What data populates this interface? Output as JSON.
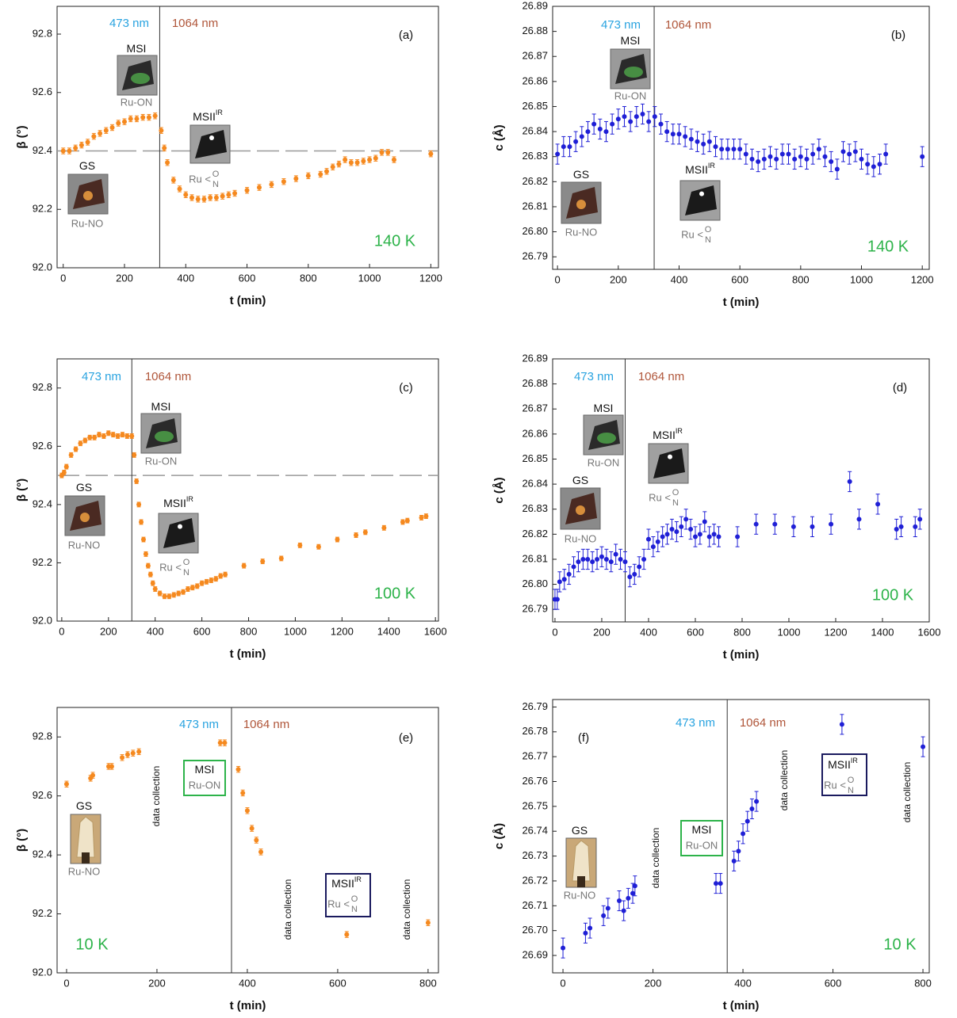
{
  "chart_data": [
    {
      "type": "scatter",
      "label": "(a)",
      "x_label": "t (min)",
      "y_label": "β (°)",
      "color": "#f5891f",
      "pump": "473 nm",
      "probe": "1064 nm",
      "temperature": "140 K",
      "xlim": [
        -20,
        1225
      ],
      "ylim": [
        92.0,
        92.895
      ],
      "xticks": [
        0,
        200,
        400,
        600,
        800,
        1000,
        1200
      ],
      "yticks": [
        {
          "value": 92.0,
          "label": "92.0"
        },
        92.2,
        92.4,
        92.6,
        92.8
      ],
      "switch_time": 315,
      "reference_line": 92.4,
      "states": [
        {
          "name": "MSI",
          "sub": "Ru-ON"
        },
        {
          "name": "GS",
          "sub": "Ru-NO"
        },
        {
          "name": "MSII",
          "sup": "IR",
          "base": "Ru <",
          "top": "O",
          "bottom": "N"
        }
      ],
      "x": [
        0,
        20,
        40,
        60,
        80,
        100,
        120,
        140,
        160,
        180,
        200,
        220,
        240,
        260,
        280,
        300,
        320,
        330,
        340,
        360,
        380,
        400,
        420,
        440,
        460,
        480,
        500,
        520,
        540,
        560,
        600,
        640,
        680,
        720,
        760,
        800,
        840,
        860,
        880,
        900,
        920,
        940,
        960,
        980,
        1000,
        1020,
        1040,
        1060,
        1080,
        1200
      ],
      "values": [
        92.4,
        92.4,
        92.41,
        92.42,
        92.43,
        92.45,
        92.46,
        92.47,
        92.48,
        92.495,
        92.5,
        92.51,
        92.51,
        92.515,
        92.515,
        92.52,
        92.47,
        92.41,
        92.36,
        92.3,
        92.27,
        92.25,
        92.24,
        92.235,
        92.235,
        92.24,
        92.24,
        92.245,
        92.25,
        92.255,
        92.265,
        92.275,
        92.285,
        92.295,
        92.305,
        92.315,
        92.32,
        92.33,
        92.345,
        92.355,
        92.37,
        92.36,
        92.36,
        92.365,
        92.37,
        92.375,
        92.395,
        92.395,
        92.37,
        92.39
      ],
      "errors": [
        0.01,
        0.01,
        0.01,
        0.01,
        0.01,
        0.01,
        0.01,
        0.01,
        0.01,
        0.01,
        0.01,
        0.01,
        0.01,
        0.01,
        0.01,
        0.01,
        0.01,
        0.01,
        0.01,
        0.01,
        0.01,
        0.01,
        0.01,
        0.01,
        0.01,
        0.01,
        0.01,
        0.01,
        0.01,
        0.01,
        0.01,
        0.01,
        0.01,
        0.01,
        0.01,
        0.01,
        0.01,
        0.01,
        0.01,
        0.01,
        0.01,
        0.01,
        0.01,
        0.01,
        0.01,
        0.01,
        0.01,
        0.01,
        0.01,
        0.01
      ]
    },
    {
      "type": "scatter",
      "label": "(b)",
      "x_label": "t (min)",
      "y_label": "c (Å)",
      "color": "#1f1fd6",
      "pump": "473 nm",
      "probe": "1064 nm",
      "temperature": "140 K",
      "xlim": [
        -16,
        1223
      ],
      "ylim": [
        26.785,
        26.89
      ],
      "xticks": [
        0,
        200,
        400,
        600,
        800,
        1000,
        1200
      ],
      "yticks": [
        26.79,
        {
          "value": 26.8,
          "label": "26.80"
        },
        26.81,
        26.82,
        26.83,
        26.84,
        26.85,
        26.86,
        26.87,
        26.88,
        26.89
      ],
      "switch_time": 318,
      "states": [
        {
          "name": "MSI",
          "sub": "Ru-ON"
        },
        {
          "name": "GS",
          "sub": "Ru-NO"
        },
        {
          "name": "MSII",
          "sup": "IR",
          "base": "Ru <",
          "top": "O",
          "bottom": "N"
        }
      ],
      "x": [
        0,
        20,
        40,
        60,
        80,
        100,
        120,
        140,
        160,
        180,
        200,
        220,
        240,
        260,
        280,
        300,
        320,
        340,
        360,
        380,
        400,
        420,
        440,
        460,
        480,
        500,
        520,
        540,
        560,
        580,
        600,
        620,
        640,
        660,
        680,
        700,
        720,
        740,
        760,
        780,
        800,
        820,
        840,
        860,
        880,
        900,
        920,
        940,
        960,
        980,
        1000,
        1020,
        1040,
        1060,
        1080,
        1200
      ],
      "values": [
        26.831,
        26.834,
        26.834,
        26.836,
        26.838,
        26.84,
        26.843,
        26.841,
        26.84,
        26.843,
        26.845,
        26.846,
        26.844,
        26.846,
        26.847,
        26.844,
        26.846,
        26.843,
        26.84,
        26.839,
        26.839,
        26.838,
        26.837,
        26.836,
        26.835,
        26.836,
        26.834,
        26.833,
        26.833,
        26.833,
        26.833,
        26.831,
        26.829,
        26.828,
        26.829,
        26.83,
        26.829,
        26.831,
        26.831,
        26.829,
        26.83,
        26.829,
        26.831,
        26.833,
        26.83,
        26.828,
        26.825,
        26.832,
        26.831,
        26.832,
        26.829,
        26.827,
        26.826,
        26.827,
        26.831,
        26.83
      ],
      "errors": [
        0.004,
        0.004,
        0.004,
        0.004,
        0.004,
        0.004,
        0.004,
        0.004,
        0.004,
        0.004,
        0.004,
        0.004,
        0.004,
        0.004,
        0.004,
        0.004,
        0.004,
        0.004,
        0.004,
        0.004,
        0.004,
        0.004,
        0.004,
        0.004,
        0.004,
        0.004,
        0.004,
        0.004,
        0.004,
        0.004,
        0.004,
        0.004,
        0.004,
        0.004,
        0.004,
        0.004,
        0.004,
        0.004,
        0.004,
        0.004,
        0.004,
        0.004,
        0.004,
        0.004,
        0.004,
        0.004,
        0.004,
        0.004,
        0.004,
        0.004,
        0.004,
        0.004,
        0.004,
        0.004,
        0.004,
        0.004
      ]
    },
    {
      "type": "scatter",
      "label": "(c)",
      "x_label": "t (min)",
      "y_label": "β (°)",
      "color": "#f5891f",
      "pump": "473 nm",
      "probe": "1064 nm",
      "temperature": "100 K",
      "xlim": [
        -20,
        1613
      ],
      "ylim": [
        92.0,
        92.9
      ],
      "xticks": [
        0,
        200,
        400,
        600,
        800,
        1000,
        1200,
        1400,
        1600
      ],
      "yticks": [
        {
          "value": 92.0,
          "label": "92.0"
        },
        92.2,
        92.4,
        92.6,
        92.8
      ],
      "switch_time": 300,
      "reference_line": 92.5,
      "states": [
        {
          "name": "MSI",
          "sub": "Ru-ON"
        },
        {
          "name": "GS",
          "sub": "Ru-NO"
        },
        {
          "name": "MSII",
          "sup": "IR",
          "base": "Ru <",
          "top": "O",
          "bottom": "N"
        }
      ],
      "x": [
        0,
        10,
        20,
        40,
        60,
        80,
        100,
        120,
        140,
        160,
        180,
        200,
        220,
        240,
        260,
        280,
        300,
        310,
        320,
        330,
        340,
        350,
        360,
        370,
        380,
        390,
        400,
        420,
        440,
        460,
        480,
        500,
        520,
        540,
        560,
        580,
        600,
        620,
        640,
        660,
        680,
        700,
        780,
        860,
        940,
        1020,
        1100,
        1180,
        1260,
        1300,
        1380,
        1460,
        1480,
        1540,
        1560
      ],
      "values": [
        92.5,
        92.51,
        92.53,
        92.57,
        92.59,
        92.61,
        92.62,
        92.63,
        92.63,
        92.64,
        92.635,
        92.645,
        92.64,
        92.635,
        92.64,
        92.635,
        92.635,
        92.57,
        92.48,
        92.4,
        92.34,
        92.28,
        92.23,
        92.19,
        92.16,
        92.13,
        92.11,
        92.095,
        92.085,
        92.085,
        92.09,
        92.095,
        92.1,
        92.11,
        92.115,
        92.12,
        92.13,
        92.135,
        92.14,
        92.145,
        92.155,
        92.16,
        92.19,
        92.205,
        92.215,
        92.26,
        92.255,
        92.28,
        92.295,
        92.305,
        92.32,
        92.34,
        92.345,
        92.355,
        92.36
      ],
      "errors": [
        0.008,
        0.008,
        0.008,
        0.008,
        0.008,
        0.008,
        0.008,
        0.008,
        0.008,
        0.008,
        0.008,
        0.008,
        0.008,
        0.008,
        0.008,
        0.008,
        0.008,
        0.008,
        0.008,
        0.008,
        0.008,
        0.008,
        0.008,
        0.008,
        0.008,
        0.008,
        0.008,
        0.008,
        0.008,
        0.008,
        0.008,
        0.008,
        0.008,
        0.008,
        0.008,
        0.008,
        0.008,
        0.008,
        0.008,
        0.008,
        0.008,
        0.008,
        0.008,
        0.008,
        0.008,
        0.008,
        0.008,
        0.008,
        0.008,
        0.008,
        0.008,
        0.008,
        0.008,
        0.008,
        0.008
      ]
    },
    {
      "type": "scatter",
      "label": "(d)",
      "x_label": "t (min)",
      "y_label": "c (Å)",
      "color": "#1f1fd6",
      "pump": "473 nm",
      "probe": "1064 nm",
      "temperature": "100 K",
      "xlim": [
        -10,
        1600
      ],
      "ylim": [
        26.785,
        26.89
      ],
      "xticks": [
        0,
        200,
        400,
        600,
        800,
        1000,
        1200,
        1400,
        1600
      ],
      "yticks": [
        26.79,
        {
          "value": 26.8,
          "label": "26.80"
        },
        26.81,
        26.82,
        26.83,
        26.84,
        26.85,
        26.86,
        26.87,
        26.88,
        26.89
      ],
      "switch_time": 300,
      "states": [
        {
          "name": "MSI",
          "sub": "Ru-ON"
        },
        {
          "name": "GS",
          "sub": "Ru-NO"
        },
        {
          "name": "MSII",
          "sup": "IR",
          "base": "Ru <",
          "top": "O",
          "bottom": "N"
        }
      ],
      "x": [
        0,
        10,
        20,
        40,
        60,
        80,
        100,
        120,
        140,
        160,
        180,
        200,
        220,
        240,
        260,
        280,
        300,
        320,
        340,
        360,
        380,
        400,
        420,
        440,
        460,
        480,
        500,
        520,
        540,
        560,
        580,
        600,
        620,
        640,
        660,
        680,
        700,
        780,
        860,
        940,
        1020,
        1100,
        1180,
        1260,
        1300,
        1380,
        1460,
        1480,
        1540,
        1560
      ],
      "values": [
        26.794,
        26.794,
        26.801,
        26.802,
        26.804,
        26.807,
        26.809,
        26.81,
        26.81,
        26.809,
        26.81,
        26.811,
        26.81,
        26.809,
        26.812,
        26.81,
        26.809,
        26.803,
        26.804,
        26.807,
        26.81,
        26.818,
        26.815,
        26.817,
        26.819,
        26.82,
        26.822,
        26.821,
        26.823,
        26.826,
        26.822,
        26.819,
        26.82,
        26.825,
        26.819,
        26.82,
        26.819,
        26.819,
        26.824,
        26.824,
        26.823,
        26.823,
        26.824,
        26.841,
        26.826,
        26.832,
        26.822,
        26.823,
        26.823,
        26.826
      ],
      "errors": [
        0.004,
        0.004,
        0.004,
        0.004,
        0.004,
        0.004,
        0.004,
        0.004,
        0.004,
        0.004,
        0.004,
        0.004,
        0.004,
        0.004,
        0.004,
        0.004,
        0.004,
        0.004,
        0.004,
        0.004,
        0.004,
        0.004,
        0.004,
        0.004,
        0.004,
        0.004,
        0.004,
        0.004,
        0.004,
        0.004,
        0.004,
        0.004,
        0.004,
        0.004,
        0.004,
        0.004,
        0.004,
        0.004,
        0.004,
        0.004,
        0.004,
        0.004,
        0.004,
        0.004,
        0.004,
        0.004,
        0.004,
        0.004,
        0.004,
        0.004
      ]
    },
    {
      "type": "scatter",
      "label": "(e)",
      "x_label": "t (min)",
      "y_label": "β (°)",
      "color": "#f5891f",
      "pump": "473 nm",
      "probe": "1064 nm",
      "temperature": "10 K",
      "xlim": [
        -21,
        823
      ],
      "ylim": [
        92.0,
        92.9
      ],
      "xticks": [
        0,
        200,
        400,
        600,
        800
      ],
      "yticks": [
        {
          "value": 92.0,
          "label": "92.0"
        },
        92.2,
        92.4,
        92.6,
        92.8
      ],
      "switch_time": 365,
      "states": [
        {
          "name": "MSI",
          "sub": "Ru-ON"
        },
        {
          "name": "GS",
          "sub": "Ru-NO"
        },
        {
          "name": "MSII",
          "sup": "IR",
          "base": "Ru <",
          "top": "O",
          "bottom": "N"
        }
      ],
      "data_collection": [
        "data collection",
        "data collection",
        "data collection"
      ],
      "x": [
        0,
        53,
        58,
        93,
        100,
        123,
        135,
        147,
        160,
        340,
        350,
        380,
        390,
        400,
        410,
        420,
        430,
        620,
        800
      ],
      "values": [
        92.64,
        92.66,
        92.67,
        92.7,
        92.7,
        92.73,
        92.74,
        92.745,
        92.75,
        92.78,
        92.78,
        92.69,
        92.61,
        92.55,
        92.49,
        92.45,
        92.41,
        92.13,
        92.17
      ],
      "errors": [
        0.01,
        0.01,
        0.01,
        0.01,
        0.01,
        0.01,
        0.01,
        0.01,
        0.01,
        0.01,
        0.01,
        0.01,
        0.01,
        0.01,
        0.01,
        0.01,
        0.01,
        0.01,
        0.01
      ]
    },
    {
      "type": "scatter",
      "label": "(f)",
      "x_label": "t (min)",
      "y_label": "c (Å)",
      "color": "#1f1fd6",
      "pump": "473 nm",
      "probe": "1064 nm",
      "temperature": "10 K",
      "xlim": [
        -23,
        814
      ],
      "ylim": [
        26.683,
        26.793
      ],
      "xticks": [
        0,
        200,
        400,
        600,
        800
      ],
      "yticks": [
        26.69,
        {
          "value": 26.7,
          "label": "26.70"
        },
        26.71,
        26.72,
        26.73,
        26.74,
        26.75,
        26.76,
        26.77,
        26.78,
        26.79
      ],
      "switch_time": 365,
      "states": [
        {
          "name": "MSI",
          "sub": "Ru-ON"
        },
        {
          "name": "GS",
          "sub": "Ru-NO"
        },
        {
          "name": "MSII",
          "sup": "IR",
          "base": "Ru <",
          "top": "O",
          "bottom": "N"
        }
      ],
      "data_collection": [
        "data collection",
        "data collection",
        "data collection"
      ],
      "x": [
        0,
        50,
        60,
        90,
        100,
        125,
        135,
        145,
        155,
        160,
        340,
        350,
        380,
        390,
        400,
        410,
        420,
        430,
        620,
        800
      ],
      "values": [
        26.693,
        26.699,
        26.701,
        26.706,
        26.709,
        26.712,
        26.708,
        26.713,
        26.715,
        26.718,
        26.719,
        26.719,
        26.728,
        26.732,
        26.739,
        26.744,
        26.749,
        26.752,
        26.783,
        26.774
      ],
      "errors": [
        0.004,
        0.004,
        0.004,
        0.004,
        0.004,
        0.004,
        0.004,
        0.004,
        0.004,
        0.004,
        0.004,
        0.004,
        0.004,
        0.004,
        0.004,
        0.004,
        0.004,
        0.004,
        0.004,
        0.004
      ]
    }
  ]
}
